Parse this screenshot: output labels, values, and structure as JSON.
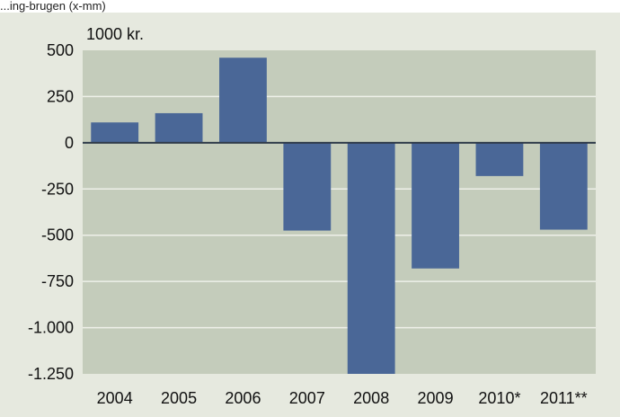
{
  "header_fragment": "...ing-brugen (x-mm)",
  "chart_data": {
    "type": "bar",
    "unit_label": "1000 kr.",
    "categories": [
      "2004",
      "2005",
      "2006",
      "2007",
      "2008",
      "2009",
      "2010*",
      "2011**"
    ],
    "values": [
      110,
      160,
      460,
      -475,
      -1250,
      -680,
      -180,
      -470
    ],
    "ylim": [
      -1250,
      500
    ],
    "yticks": [
      500,
      250,
      0,
      -250,
      -500,
      -750,
      -1000,
      -1250
    ],
    "ytick_labels": [
      "500",
      "250",
      "0",
      "-250",
      "-500",
      "-750",
      "-1.000",
      "-1.250"
    ],
    "grid": true,
    "colors": {
      "bar": "#4a6797",
      "plot_background": "#c4ccbb",
      "gridline": "#eef0e9",
      "zero_line": "#2f3b4a"
    }
  }
}
